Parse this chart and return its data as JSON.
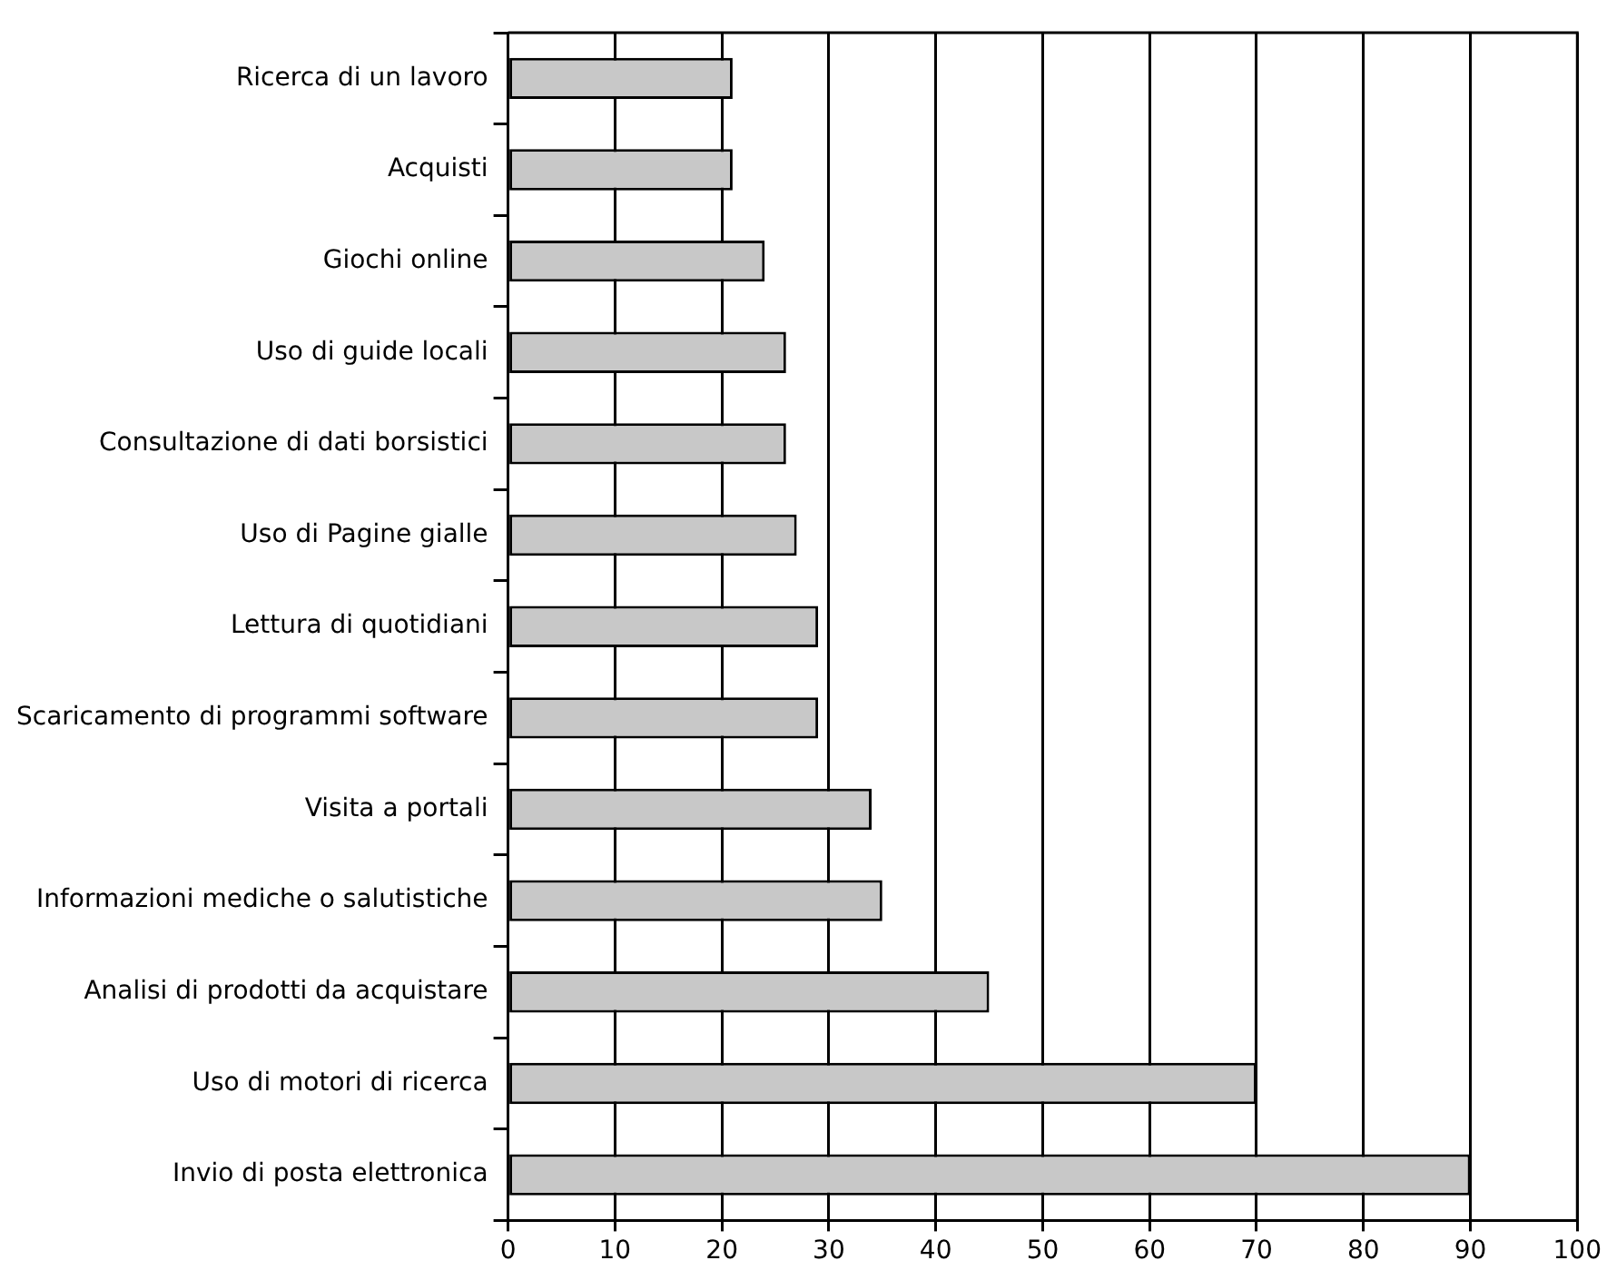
{
  "chart_data": {
    "type": "bar",
    "orientation": "horizontal",
    "categories": [
      "Ricerca di un lavoro",
      "Acquisti",
      "Giochi online",
      "Uso di guide locali",
      "Consultazione di dati borsistici",
      "Uso di Pagine gialle",
      "Lettura di quotidiani",
      "Scaricamento di programmi software",
      "Visita a portali",
      "Informazioni mediche o salutistiche",
      "Analisi di prodotti da acquistare",
      "Uso di motori di ricerca",
      "Invio di posta elettronica"
    ],
    "values": [
      21,
      21,
      24,
      26,
      26,
      27,
      29,
      29,
      34,
      35,
      45,
      70,
      90
    ],
    "color": "#c8c8c8",
    "xlim": [
      0,
      100
    ],
    "xticks": [
      0,
      10,
      20,
      30,
      40,
      50,
      60,
      70,
      80,
      90,
      100
    ],
    "grid": "x",
    "legend": false
  }
}
